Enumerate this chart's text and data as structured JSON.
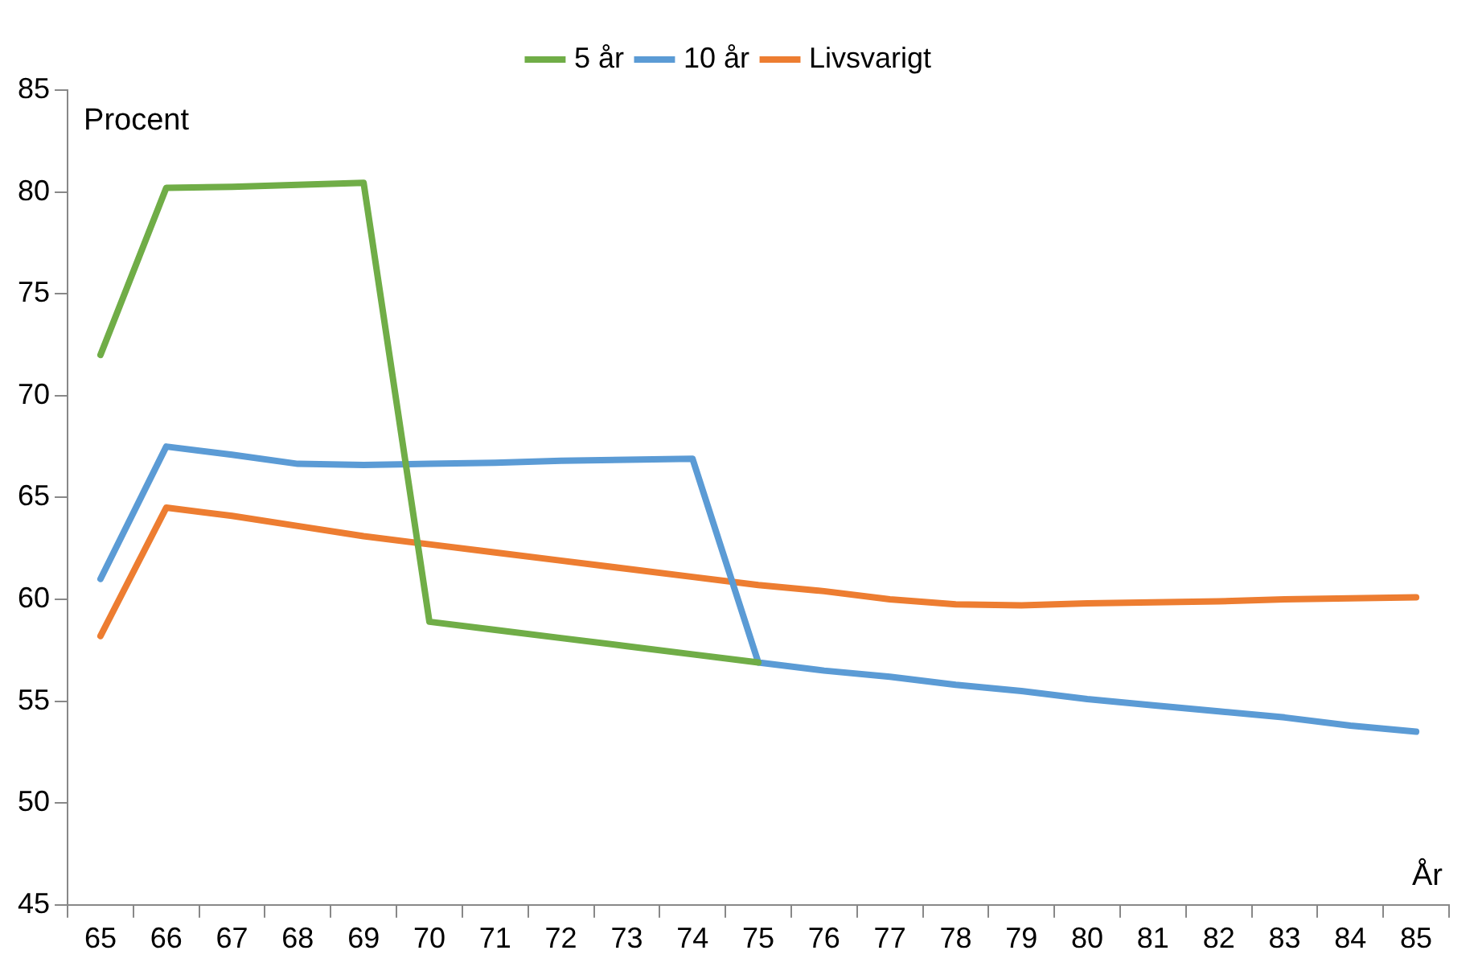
{
  "chart_data": {
    "type": "line",
    "categories": [
      "65",
      "66",
      "67",
      "68",
      "69",
      "70",
      "71",
      "72",
      "73",
      "74",
      "75",
      "76",
      "77",
      "78",
      "79",
      "80",
      "81",
      "82",
      "83",
      "84",
      "85"
    ],
    "series": [
      {
        "name": "5 år",
        "color": "#70ad47",
        "values": [
          72,
          80.2,
          80.25,
          80.35,
          80.45,
          58.9,
          58.5,
          58.1,
          57.7,
          57.3,
          56.9,
          null,
          null,
          null,
          null,
          null,
          null,
          null,
          null,
          null,
          null
        ]
      },
      {
        "name": "10 år",
        "color": "#5b9bd5",
        "values": [
          61,
          67.5,
          67.1,
          66.65,
          66.6,
          66.65,
          66.7,
          66.8,
          66.85,
          66.9,
          56.9,
          56.5,
          56.2,
          55.8,
          55.5,
          55.1,
          54.8,
          54.5,
          54.2,
          53.8,
          53.5
        ]
      },
      {
        "name": "Livsvarigt",
        "color": "#ed7d31",
        "values": [
          58.2,
          64.5,
          64.1,
          63.6,
          63.1,
          62.7,
          62.3,
          61.9,
          61.5,
          61.1,
          60.7,
          60.4,
          60,
          59.75,
          59.7,
          59.8,
          59.85,
          59.9,
          60,
          60.05,
          60.1
        ]
      }
    ],
    "ylim": [
      45,
      85
    ],
    "yticks": [
      45,
      50,
      55,
      60,
      65,
      70,
      75,
      80,
      85
    ],
    "grid": false,
    "legend": "top",
    "marker": "none",
    "line_style": "solid",
    "annotations": [
      "Procent",
      "År"
    ]
  }
}
